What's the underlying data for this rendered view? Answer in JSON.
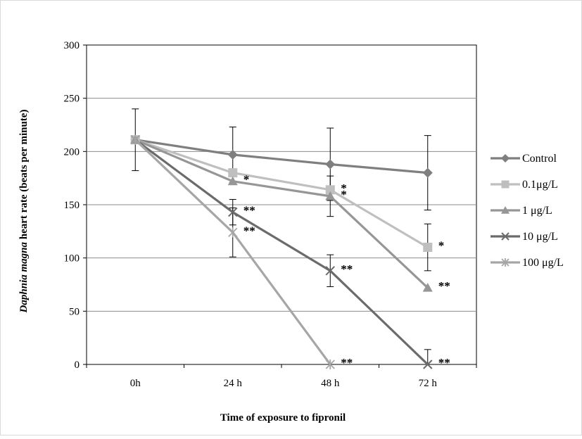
{
  "chart_data": {
    "type": "line",
    "xlabel": "Time of exposure to fipronil",
    "ylabel_italic": "Daphnia magna",
    "ylabel_rest": " heart rate (beats per minute)",
    "categories": [
      "0h",
      "24 h",
      "48 h",
      "72 h"
    ],
    "ylim": [
      0,
      300
    ],
    "yticks": [
      0,
      50,
      100,
      150,
      200,
      250,
      300
    ],
    "grid": true,
    "legend_position": "right",
    "series": [
      {
        "name": "Control",
        "values": [
          211,
          197,
          188,
          180
        ],
        "errors": [
          29,
          26,
          34,
          35
        ],
        "color": "#7f7f7f",
        "marker": "diamond",
        "labels": [
          "",
          "",
          "",
          ""
        ]
      },
      {
        "name": "0.1μg/L",
        "values": [
          211,
          180,
          164,
          110
        ],
        "errors": [
          0,
          0,
          0,
          22
        ],
        "color": "#bfbfbf",
        "marker": "square",
        "labels": [
          "",
          "",
          "*",
          "*"
        ]
      },
      {
        "name": "1 μg/L",
        "values": [
          211,
          172,
          158,
          72
        ],
        "errors": [
          0,
          0,
          19,
          0
        ],
        "color": "#969696",
        "marker": "triangle",
        "labels": [
          "",
          "*",
          "*",
          "**"
        ]
      },
      {
        "name": "10 μg/L",
        "values": [
          211,
          143,
          88,
          0
        ],
        "errors": [
          0,
          12,
          15,
          14
        ],
        "color": "#6b6b6b",
        "marker": "x",
        "labels": [
          "",
          "**",
          "**",
          "**"
        ]
      },
      {
        "name": "100 μg/L",
        "values": [
          211,
          124,
          0,
          null
        ],
        "errors": [
          0,
          23,
          0,
          0
        ],
        "color": "#a6a6a6",
        "marker": "asterisk",
        "labels": [
          "",
          "**",
          "**",
          ""
        ]
      }
    ]
  }
}
